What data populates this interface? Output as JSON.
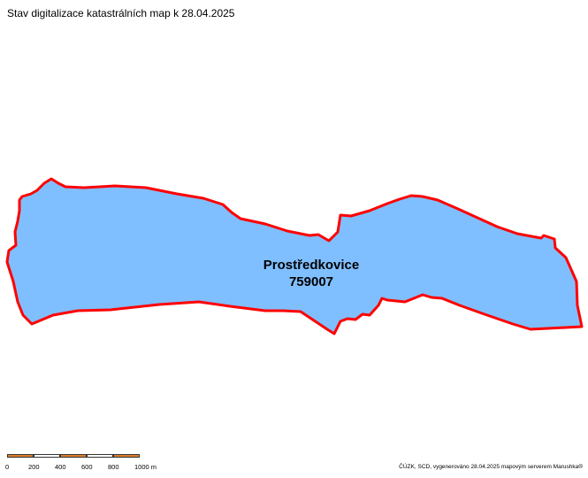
{
  "map": {
    "title": "Stav digitalizace katastrálních map k 28.04.2025",
    "area": {
      "name": "Prostředkovice",
      "code": "759007",
      "fill_color": "#80bfff",
      "border_color": "#ff0000"
    },
    "scale": {
      "labels": [
        "0",
        "200",
        "400",
        "600",
        "800",
        "1000 m"
      ],
      "colors": [
        "#e07f2b",
        "#ffffff"
      ]
    },
    "attribution": "ČÚZK, SCD, vygenerováno 28.04.2025 mapovým serverem Marushka®"
  }
}
